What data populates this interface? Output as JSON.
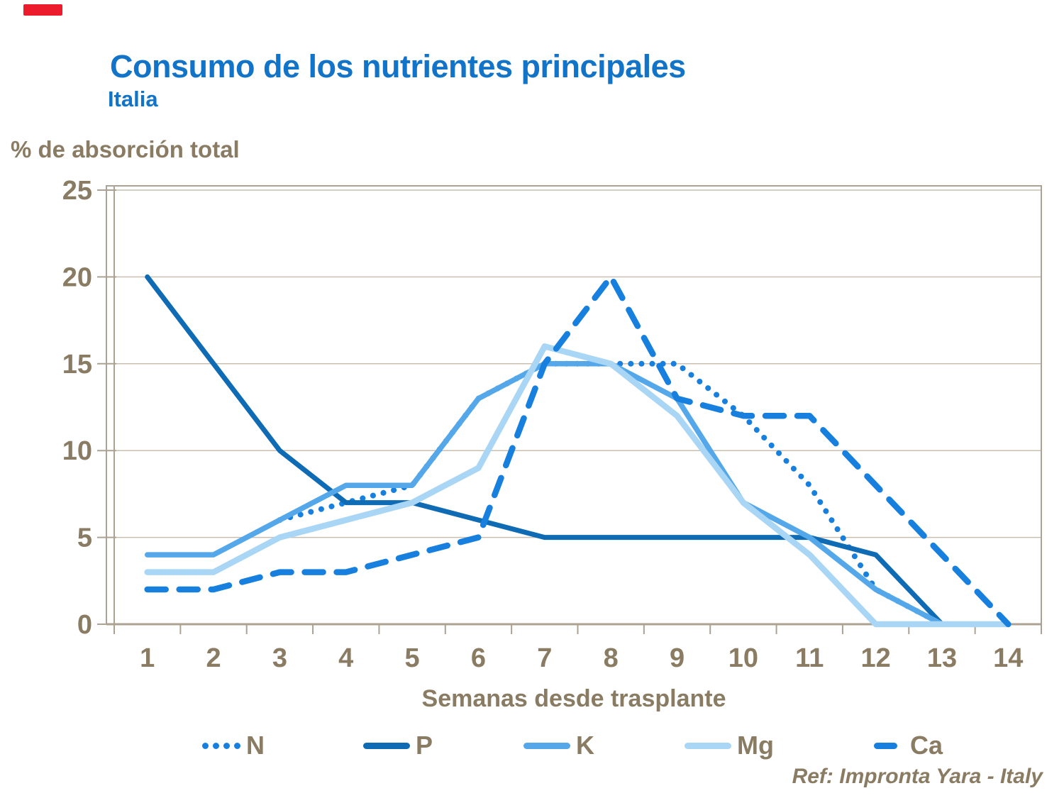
{
  "header": {
    "title": "Consumo de los nutrientes principales",
    "subtitle": "Italia"
  },
  "footer": {
    "reference": "Ref: Impronta Yara - Italy"
  },
  "decor": {
    "red_bar_color": "#EC1C2C"
  },
  "colors": {
    "title_blue": "#1174C8",
    "axis_text_brown": "#8A7B63",
    "axis_line": "#ACA293",
    "gridline": "#C9BFB1"
  },
  "chart_data": {
    "type": "line",
    "title": "Consumo de los nutrientes principales",
    "subtitle": "Italia",
    "xlabel": "Semanas desde trasplante",
    "ylabel": "% de absorción total",
    "x": [
      "1",
      "2",
      "3",
      "4",
      "5",
      "6",
      "7",
      "8",
      "9",
      "10",
      "11",
      "12",
      "13",
      "14"
    ],
    "ylim": [
      0,
      25
    ],
    "yticks": [
      0,
      5,
      10,
      15,
      20,
      25
    ],
    "grid": true,
    "legend_position": "bottom",
    "series": [
      {
        "name": "N",
        "style": "dotted",
        "color": "#1780DF",
        "width": 8,
        "x": [
          3,
          4,
          5,
          6,
          7,
          8,
          9,
          10,
          11,
          12,
          13
        ],
        "values": [
          6,
          7,
          8,
          13,
          15,
          15,
          15,
          12,
          8,
          2,
          0
        ]
      },
      {
        "name": "P",
        "style": "solid",
        "color": "#0F6BB4",
        "width": 7,
        "x": [
          1,
          2,
          3,
          4,
          5,
          6,
          7,
          8,
          9,
          10,
          11,
          12,
          13
        ],
        "values": [
          20,
          15,
          10,
          7,
          7,
          6,
          5,
          5,
          5,
          5,
          5,
          4,
          0
        ]
      },
      {
        "name": "K",
        "style": "solid",
        "color": "#54A7E9",
        "width": 7.5,
        "x": [
          1,
          2,
          3,
          4,
          5,
          6,
          7,
          8,
          9,
          10,
          11,
          12,
          13,
          14
        ],
        "values": [
          4,
          4,
          6,
          8,
          8,
          13,
          15,
          15,
          13,
          7,
          5,
          2,
          0,
          0
        ]
      },
      {
        "name": "Mg",
        "style": "solid",
        "color": "#AAD6F6",
        "width": 8.5,
        "x": [
          1,
          2,
          3,
          4,
          5,
          6,
          7,
          8,
          9,
          10,
          11,
          12,
          13,
          14
        ],
        "values": [
          3,
          3,
          5,
          6,
          7,
          9,
          16,
          15,
          12,
          7,
          4,
          0,
          0,
          0
        ]
      },
      {
        "name": "Ca",
        "style": "dashed",
        "color": "#1780DF",
        "width": 8.5,
        "x": [
          1,
          2,
          3,
          4,
          5,
          6,
          7,
          8,
          9,
          10,
          11,
          12,
          13,
          14
        ],
        "values": [
          2,
          2,
          3,
          3,
          4,
          5,
          15,
          20,
          13,
          12,
          12,
          8,
          4,
          0
        ]
      }
    ]
  }
}
